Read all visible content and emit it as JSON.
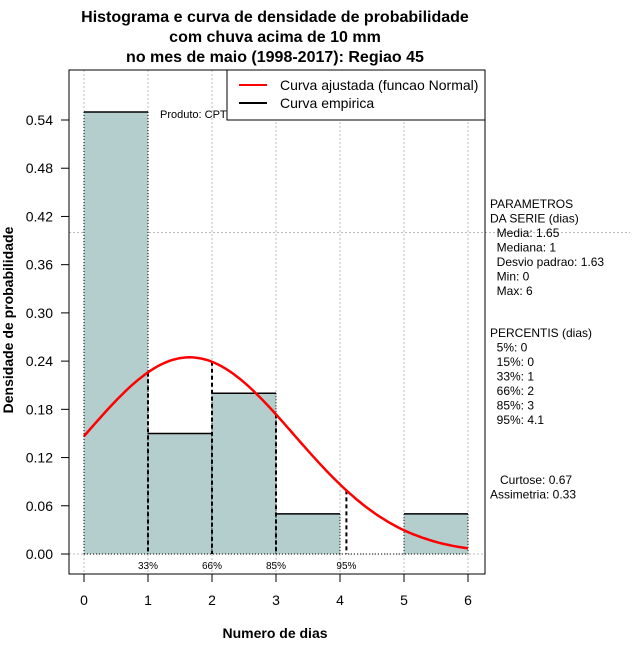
{
  "chart_data": {
    "type": "bar",
    "title": [
      "Histograma e curva de densidade de probabilidade",
      "com chuva acima de 10 mm",
      "no mes de maio (1998-2017): Regiao 45"
    ],
    "xlabel": "Numero de dias",
    "ylabel": "Densidade de probabilidade",
    "xlim": [
      0,
      6
    ],
    "ylim": [
      0,
      0.54
    ],
    "x_ticks": [
      "0",
      "1",
      "2",
      "3",
      "4",
      "5",
      "6"
    ],
    "y_ticks": [
      "0.00",
      "0.06",
      "0.12",
      "0.18",
      "0.24",
      "0.30",
      "0.36",
      "0.42",
      "0.48",
      "0.54"
    ],
    "bins": [
      [
        0,
        1
      ],
      [
        1,
        2
      ],
      [
        2,
        3
      ],
      [
        3,
        4
      ],
      [
        4,
        5
      ],
      [
        5,
        6
      ]
    ],
    "values": [
      0.55,
      0.15,
      0.2,
      0.05,
      0.0,
      0.05
    ],
    "bar_color": "#b4cece",
    "normal_curve": {
      "mean": 1.65,
      "sd": 1.63,
      "color": "#ff0000"
    },
    "reference_line_y": 0.4,
    "percentile_lines": [
      {
        "x": 1,
        "label": "33%"
      },
      {
        "x": 2,
        "label": "66%"
      },
      {
        "x": 3,
        "label": "85%"
      },
      {
        "x": 4.1,
        "label": "95%"
      }
    ],
    "legend": {
      "placement": "top-right",
      "entries": [
        {
          "label": "Curva ajustada (funcao Normal)",
          "color": "#ff0000"
        },
        {
          "label": "Curva empirica",
          "color": "#000000"
        }
      ]
    },
    "annotation": "Produto: CPTEC/INPE"
  },
  "side_panel": {
    "parametros": [
      "PARAMETROS",
      "DA SERIE (dias)",
      "  Media: 1.65",
      "  Mediana: 1",
      "  Desvio padrao: 1.63",
      "  Min: 0",
      "  Max: 6"
    ],
    "percentis": [
      "PERCENTIS (dias)",
      "  5%: 0",
      "  15%: 0",
      "  33%: 1",
      "  66%: 2",
      "  85%: 3",
      "  95%: 4.1"
    ],
    "stats": [
      "   Curtose: 0.67",
      "Assimetria: 0.33"
    ]
  }
}
